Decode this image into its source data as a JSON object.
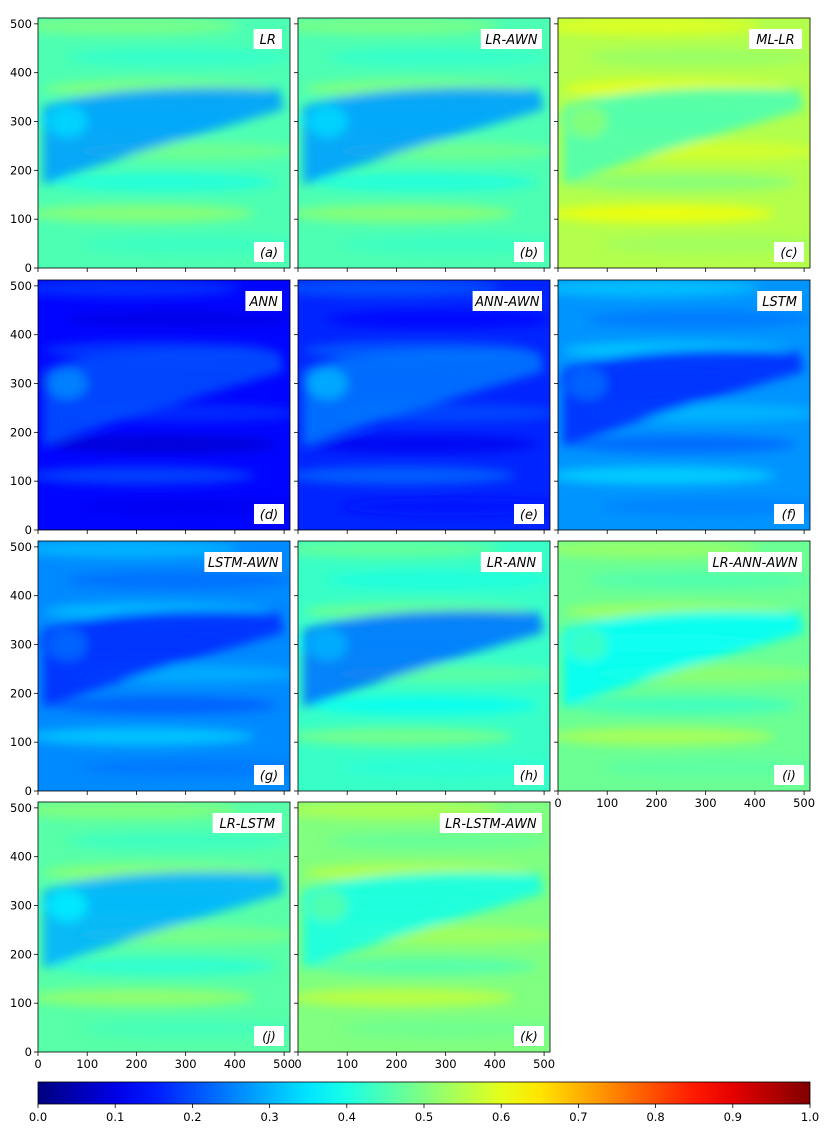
{
  "chart_data": {
    "type": "heatmap",
    "colormap": "jet",
    "axis_range": {
      "x": [
        0,
        512
      ],
      "y": [
        0,
        512
      ]
    },
    "x_ticks": [
      "0",
      "100",
      "200",
      "300",
      "400",
      "500"
    ],
    "y_ticks": [
      "0",
      "100",
      "200",
      "300",
      "400",
      "500"
    ],
    "grid": false,
    "colorbar": {
      "orientation": "horizontal",
      "placement": "bottom",
      "range": [
        0.0,
        1.0
      ],
      "ticks": [
        "0.0",
        "0.1",
        "0.2",
        "0.3",
        "0.4",
        "0.5",
        "0.6",
        "0.7",
        "0.8",
        "0.9",
        "1.0"
      ]
    },
    "panels": [
      {
        "title": "LR",
        "letter": "(a)",
        "mean_value": 0.45,
        "channel_value": 0.28
      },
      {
        "title": "LR-AWN",
        "letter": "(b)",
        "mean_value": 0.45,
        "channel_value": 0.28
      },
      {
        "title": "ML-LR",
        "letter": "(c)",
        "mean_value": 0.55,
        "channel_value": 0.45
      },
      {
        "title": "ANN",
        "letter": "(d)",
        "mean_value": 0.13,
        "channel_value": 0.2
      },
      {
        "title": "ANN-AWN",
        "letter": "(e)",
        "mean_value": 0.16,
        "channel_value": 0.24
      },
      {
        "title": "LSTM",
        "letter": "(f)",
        "mean_value": 0.27,
        "channel_value": 0.17
      },
      {
        "title": "LSTM-AWN",
        "letter": "(g)",
        "mean_value": 0.26,
        "channel_value": 0.17
      },
      {
        "title": "LR-ANN",
        "letter": "(h)",
        "mean_value": 0.43,
        "channel_value": 0.24
      },
      {
        "title": "LR-ANN-AWN",
        "letter": "(i)",
        "mean_value": 0.48,
        "channel_value": 0.38
      },
      {
        "title": "LR-LSTM",
        "letter": "(j)",
        "mean_value": 0.46,
        "channel_value": 0.3
      },
      {
        "title": "LR-LSTM-AWN",
        "letter": "(k)",
        "mean_value": 0.5,
        "channel_value": 0.4
      }
    ]
  }
}
